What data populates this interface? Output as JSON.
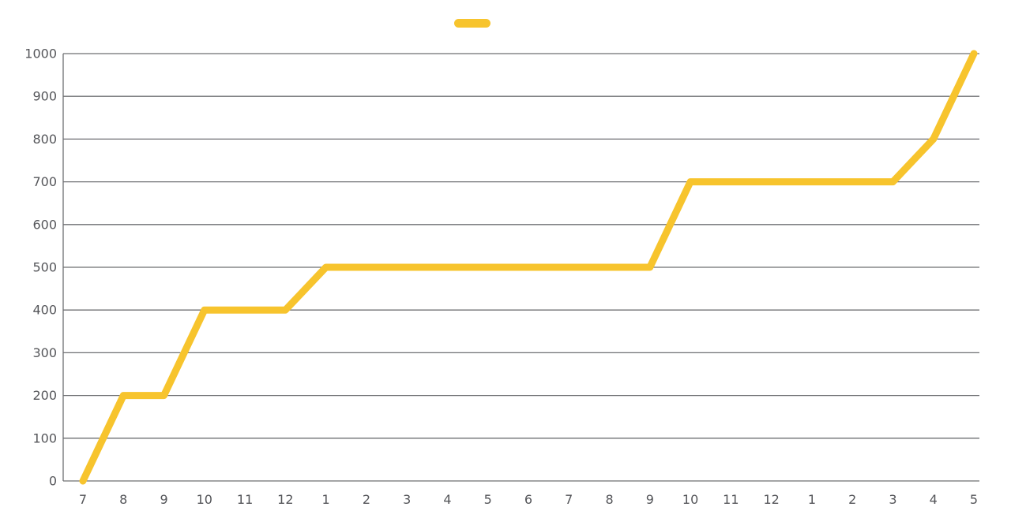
{
  "chart_data": {
    "type": "line",
    "title": "",
    "xlabel": "",
    "ylabel": "",
    "categories": [
      "7",
      "8",
      "9",
      "10",
      "11",
      "12",
      "1",
      "2",
      "3",
      "4",
      "5",
      "6",
      "7",
      "8",
      "9",
      "10",
      "11",
      "12",
      "1",
      "2",
      "3",
      "4",
      "5"
    ],
    "series": [
      {
        "name": "",
        "color": "#F7C42D",
        "values": [
          0,
          200,
          200,
          400,
          400,
          400,
          500,
          500,
          500,
          500,
          500,
          500,
          500,
          500,
          500,
          700,
          700,
          700,
          700,
          700,
          700,
          800,
          1000
        ]
      }
    ],
    "ylim": [
      0,
      1000
    ],
    "yticks": [
      0,
      100,
      200,
      300,
      400,
      500,
      600,
      700,
      800,
      900,
      1000
    ],
    "grid": true,
    "legend_position": "top-center"
  },
  "style": {
    "line_color": "#F7C42D",
    "grid_color": "#6E6F72",
    "axis_color": "#6E6F72",
    "tick_label_color": "#55565A",
    "background": "#FFFFFF"
  }
}
